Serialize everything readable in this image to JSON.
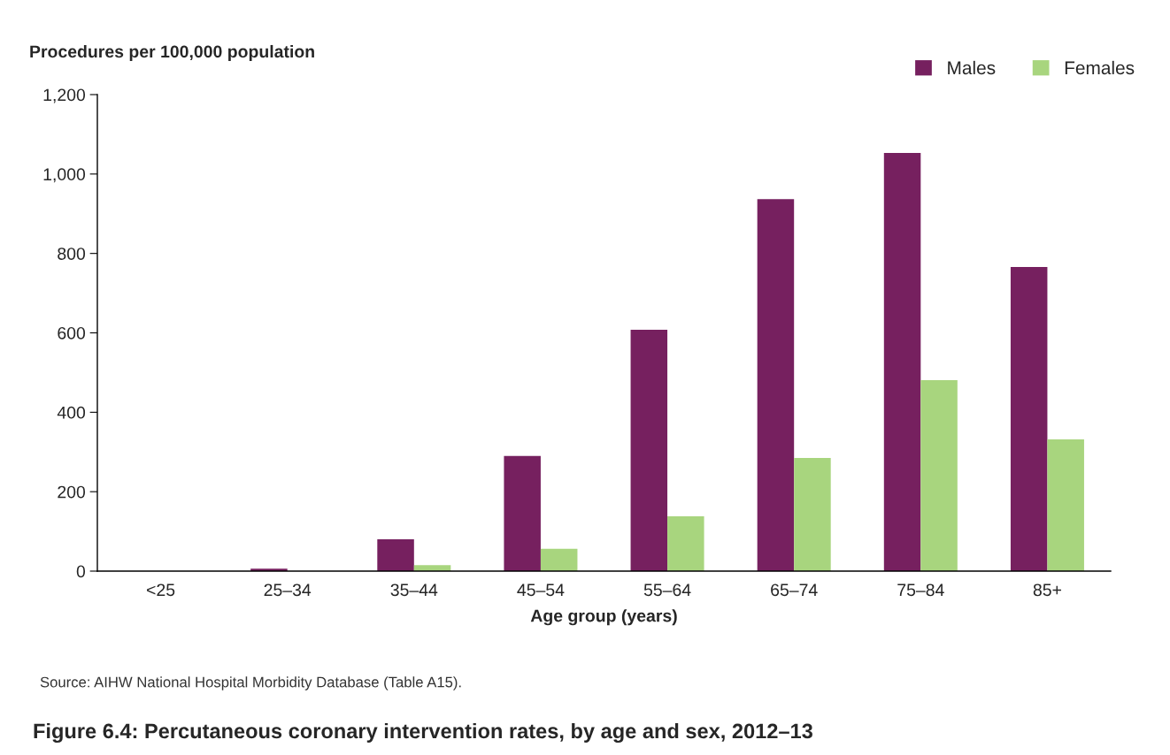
{
  "chart_data": {
    "type": "bar",
    "title": "Figure 6.4: Percutaneous coronary intervention rates, by age and sex, 2012–13",
    "xlabel": "Age group (years)",
    "ylabel": "Procedures per 100,000 population",
    "categories": [
      "<25",
      "25–34",
      "35–44",
      "45–54",
      "55–64",
      "65–74",
      "75–84",
      "85+"
    ],
    "series": [
      {
        "name": "Males",
        "color": "#76205f",
        "values": [
          null,
          6,
          80,
          290,
          608,
          937,
          1053,
          766
        ]
      },
      {
        "name": "Females",
        "color": "#a8d57e",
        "values": [
          null,
          null,
          15,
          56,
          138,
          285,
          481,
          332
        ]
      }
    ],
    "ylim": [
      0,
      1200
    ],
    "yticks": [
      0,
      {
        "value": 200,
        "label": "200"
      },
      {
        "value": 400,
        "label": "400"
      },
      {
        "value": 600,
        "label": "600"
      },
      {
        "value": 800,
        "label": "800"
      },
      {
        "value": 1000,
        "label": "1,000"
      },
      {
        "value": 1200,
        "label": "1,200"
      }
    ],
    "grid": false,
    "legend": "top right",
    "annotations": [
      "Source: AIHW National Hospital Morbidity Database (Table A15)."
    ]
  }
}
